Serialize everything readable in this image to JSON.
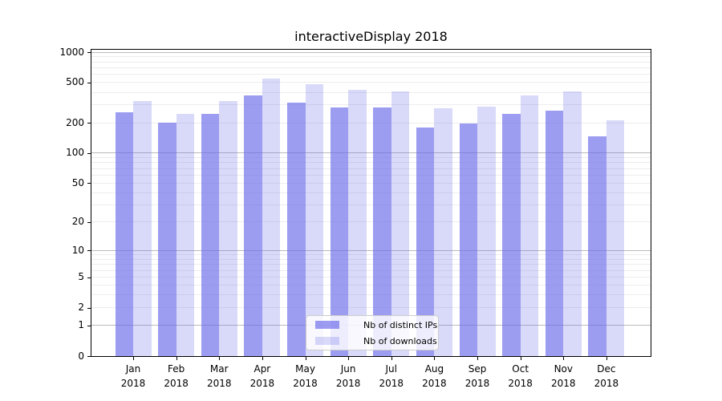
{
  "chart_data": {
    "type": "bar",
    "title": "interactiveDisplay 2018",
    "categories": [
      "Jan",
      "Feb",
      "Mar",
      "Apr",
      "May",
      "Jun",
      "Jul",
      "Aug",
      "Sep",
      "Oct",
      "Nov",
      "Dec"
    ],
    "category_year": "2018",
    "series": [
      {
        "name": "Nb of distinct IPs",
        "color": "rgba(105,105,233,0.66)",
        "values": [
          252,
          200,
          244,
          376,
          316,
          285,
          285,
          180,
          198,
          245,
          263,
          146
        ]
      },
      {
        "name": "Nb of downloads",
        "color": "rgba(105,105,233,0.25)",
        "values": [
          328,
          244,
          330,
          547,
          485,
          424,
          411,
          280,
          288,
          371,
          411,
          210
        ]
      }
    ],
    "xlabel": "",
    "ylabel": "",
    "yscale": "symlog",
    "ylim": [
      0,
      1050
    ],
    "yticks": [
      0,
      1,
      2,
      5,
      10,
      20,
      50,
      100,
      200,
      500,
      1000
    ],
    "ytick_labels": [
      "0",
      "1",
      "2",
      "5",
      "10",
      "20",
      "50",
      "100",
      "200",
      "500",
      "1000"
    ],
    "grid": "horizontal",
    "legend_position": "lower center"
  },
  "colors": {
    "background": "#ffffff",
    "spine": "#000000",
    "major_grid": "#bbbbbb",
    "minor_grid": "#ededed",
    "bar_dark_solid": "#9c9cf0",
    "bar_light_solid": "#d9d9f9"
  }
}
